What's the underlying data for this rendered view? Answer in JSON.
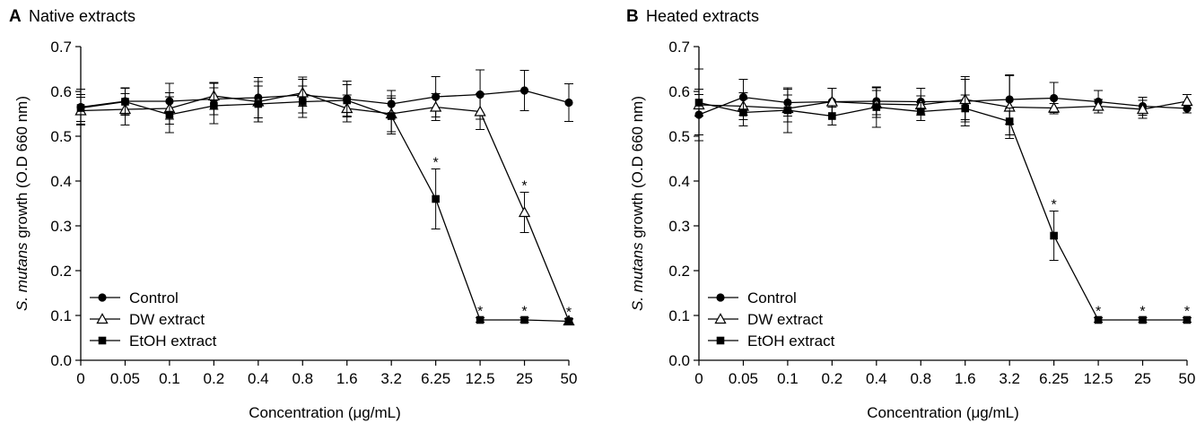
{
  "chart_data": [
    {
      "type": "line",
      "panel": "A",
      "title": "Native extracts",
      "ylabel_italic": "S. mutans",
      "ylabel_rest": " growth (O.D 660 nm)",
      "xlabel_pre": "Concentration (",
      "xlabel_mu": "μ",
      "xlabel_post": "g/mL)",
      "categories": [
        "0",
        "0.05",
        "0.1",
        "0.2",
        "0.4",
        "0.8",
        "1.6",
        "3.2",
        "6.25",
        "12.5",
        "25",
        "50"
      ],
      "yticks": [
        "0.0",
        "0.1",
        "0.2",
        "0.3",
        "0.4",
        "0.5",
        "0.6",
        "0.7"
      ],
      "ylim": [
        0,
        0.7
      ],
      "legend_position": "lower-left",
      "series": [
        {
          "name": "Control",
          "marker": "circle",
          "values": [
            0.565,
            0.578,
            0.578,
            0.583,
            0.586,
            0.592,
            0.583,
            0.572,
            0.588,
            0.593,
            0.602,
            0.575
          ],
          "errors": [
            0.04,
            0.03,
            0.04,
            0.035,
            0.045,
            0.04,
            0.04,
            0.03,
            0.045,
            0.055,
            0.045,
            0.042
          ],
          "sig": [
            false,
            false,
            false,
            false,
            false,
            false,
            false,
            false,
            false,
            false,
            false,
            false
          ]
        },
        {
          "name": "DW extract",
          "marker": "triangle",
          "values": [
            0.557,
            0.56,
            0.562,
            0.59,
            0.577,
            0.597,
            0.562,
            0.55,
            0.565,
            0.555,
            0.33,
            0.088
          ],
          "errors": [
            0.03,
            0.035,
            0.035,
            0.03,
            0.045,
            0.03,
            0.03,
            0.04,
            0.03,
            0.04,
            0.045,
            0.005
          ],
          "sig": [
            false,
            false,
            false,
            false,
            false,
            false,
            false,
            false,
            false,
            false,
            true,
            true
          ]
        },
        {
          "name": "EtOH extract",
          "marker": "square",
          "values": [
            0.563,
            0.577,
            0.548,
            0.568,
            0.572,
            0.577,
            0.58,
            0.545,
            0.36,
            0.09,
            0.09,
            0.087
          ],
          "errors": [
            0.03,
            0.03,
            0.04,
            0.04,
            0.04,
            0.035,
            0.035,
            0.04,
            0.067,
            0.005,
            0.005,
            0.005
          ],
          "sig": [
            false,
            false,
            false,
            false,
            false,
            false,
            false,
            false,
            true,
            true,
            true,
            false
          ]
        }
      ]
    },
    {
      "type": "line",
      "panel": "B",
      "title": "Heated extracts",
      "ylabel_italic": "S. mutans",
      "ylabel_rest": " growth (O.D 660 nm)",
      "xlabel_pre": "Concentration (",
      "xlabel_mu": "μ",
      "xlabel_post": "g/mL)",
      "categories": [
        "0",
        "0.05",
        "0.1",
        "0.2",
        "0.4",
        "0.8",
        "1.6",
        "3.2",
        "6.25",
        "12.5",
        "25",
        "50"
      ],
      "yticks": [
        "0.0",
        "0.1",
        "0.2",
        "0.3",
        "0.4",
        "0.5",
        "0.6",
        "0.7"
      ],
      "ylim": [
        0,
        0.7
      ],
      "legend_position": "lower-left",
      "series": [
        {
          "name": "Control",
          "marker": "circle",
          "values": [
            0.548,
            0.587,
            0.575,
            0.577,
            0.578,
            0.577,
            0.578,
            0.582,
            0.585,
            0.577,
            0.567,
            0.562
          ],
          "errors": [
            0.045,
            0.04,
            0.03,
            0.03,
            0.03,
            0.03,
            0.055,
            0.055,
            0.035,
            0.025,
            0.02,
            0.01
          ],
          "sig": [
            false,
            false,
            false,
            false,
            false,
            false,
            false,
            false,
            false,
            false,
            false,
            false
          ]
        },
        {
          "name": "DW extract",
          "marker": "triangle",
          "values": [
            0.57,
            0.567,
            0.562,
            0.577,
            0.572,
            0.57,
            0.582,
            0.565,
            0.563,
            0.567,
            0.56,
            0.578
          ],
          "errors": [
            0.08,
            0.03,
            0.03,
            0.03,
            0.03,
            0.02,
            0.045,
            0.07,
            0.01,
            0.015,
            0.02,
            0.015
          ],
          "sig": [
            false,
            false,
            false,
            false,
            false,
            false,
            false,
            false,
            false,
            false,
            false,
            false
          ]
        },
        {
          "name": "EtOH extract",
          "marker": "square",
          "values": [
            0.575,
            0.553,
            0.558,
            0.545,
            0.565,
            0.555,
            0.562,
            0.533,
            0.278,
            0.09,
            0.09,
            0.09
          ],
          "errors": [
            0.03,
            0.03,
            0.05,
            0.02,
            0.045,
            0.02,
            0.03,
            0.03,
            0.055,
            0.005,
            0.005,
            0.005
          ],
          "sig": [
            false,
            false,
            false,
            false,
            false,
            false,
            false,
            false,
            true,
            true,
            true,
            true
          ]
        }
      ]
    }
  ]
}
